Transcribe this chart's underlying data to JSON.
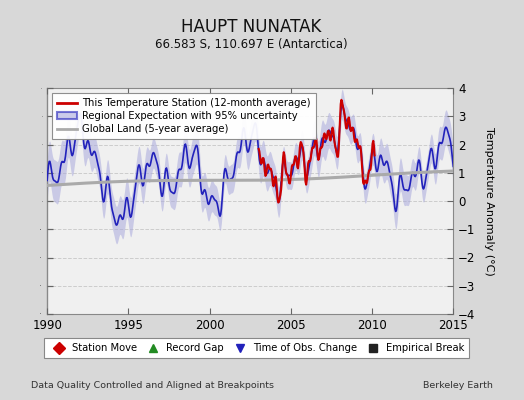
{
  "title": "HAUPT NUNATAK",
  "subtitle": "66.583 S, 110.697 E (Antarctica)",
  "ylabel": "Temperature Anomaly (°C)",
  "xlabel_left": "Data Quality Controlled and Aligned at Breakpoints",
  "xlabel_right": "Berkeley Earth",
  "xlim": [
    1990,
    2015
  ],
  "ylim": [
    -4,
    4
  ],
  "yticks": [
    -4,
    -3,
    -2,
    -1,
    0,
    1,
    2,
    3,
    4
  ],
  "xticks": [
    1990,
    1995,
    2000,
    2005,
    2010,
    2015
  ],
  "bg_color": "#d8d8d8",
  "plot_bg_color": "#f0f0f0",
  "regional_fill_color": "#aaaadd",
  "regional_line_color": "#2222bb",
  "station_color": "#cc0000",
  "global_color": "#aaaaaa",
  "legend_items": [
    {
      "label": "This Temperature Station (12-month average)",
      "color": "#cc0000"
    },
    {
      "label": "Regional Expectation with 95% uncertainty",
      "color": "#2222bb"
    },
    {
      "label": "Global Land (5-year average)",
      "color": "#aaaaaa"
    }
  ],
  "bottom_legend": [
    {
      "label": "Station Move",
      "marker": "D",
      "color": "#cc0000"
    },
    {
      "label": "Record Gap",
      "marker": "^",
      "color": "#228B22"
    },
    {
      "label": "Time of Obs. Change",
      "marker": "v",
      "color": "#2222bb"
    },
    {
      "label": "Empirical Break",
      "marker": "s",
      "color": "#222222"
    }
  ]
}
